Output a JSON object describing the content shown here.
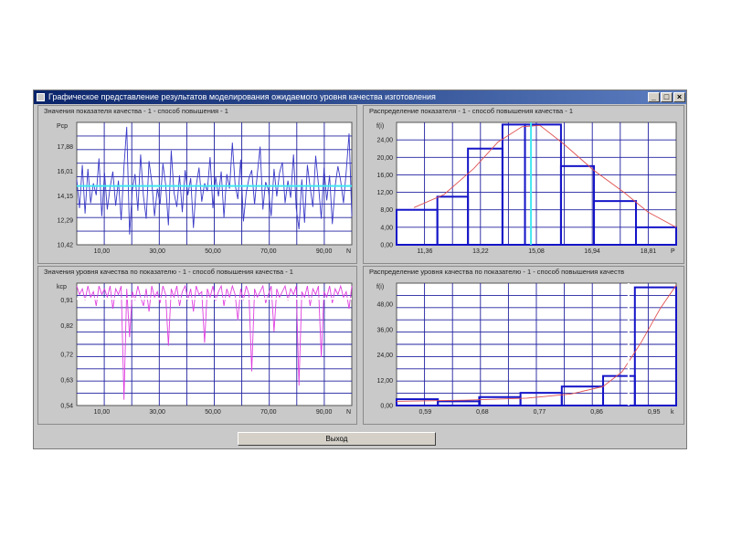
{
  "window": {
    "title": "Графическое представление результатов моделирования ожидаемого уровня качества изготовления",
    "buttons": {
      "minimize": "_",
      "maximize": "□",
      "close": "×"
    }
  },
  "panels": {
    "top_left_title": "Значения показателя качества - 1 - способ повышения - 1",
    "top_right_title": "Распределение  показателя - 1 - способ повышения качества - 1",
    "bottom_left_title": "Значения уровня качества по показателю - 1 - способ повышения качества - 1",
    "bottom_right_title": "Распределение  уровня качества по показателю - 1 - способ повышения качеств"
  },
  "exit_button": "Выход",
  "colors": {
    "series_blue": "#3a3ac8",
    "series_magenta": "#e040e0",
    "mean_cyan": "#40e8f0",
    "grid_blue": "#2020a0",
    "curve_red": "#e05050"
  },
  "chart_data": [
    {
      "type": "line",
      "title": "Значения показателя качества - 1 - способ повышения - 1",
      "ylabel": "Pcp",
      "xlabel": "N",
      "xlim": [
        1,
        100
      ],
      "ylim": [
        10.42,
        19.74
      ],
      "yticks": [
        "10,42",
        "12,29",
        "14,15",
        "16,01",
        "17,88"
      ],
      "yticks_values": [
        10.42,
        12.29,
        14.15,
        16.01,
        17.88
      ],
      "xticks": [
        "10,00",
        "30,00",
        "50,00",
        "70,00",
        "90,00"
      ],
      "xticks_values": [
        10,
        30,
        50,
        70,
        90
      ],
      "mean": 14.9,
      "values": [
        15.4,
        13.2,
        16.5,
        12.8,
        16.2,
        13.6,
        15.1,
        14.2,
        17.0,
        12.6,
        15.9,
        13.1,
        14.8,
        16.0,
        13.4,
        15.3,
        12.3,
        16.4,
        19.4,
        11.2,
        14.6,
        15.8,
        13.0,
        17.3,
        14.1,
        12.4,
        16.8,
        15.2,
        12.6,
        14.7,
        13.5,
        16.6,
        15.0,
        11.9,
        17.6,
        14.4,
        13.3,
        15.7,
        12.9,
        16.1,
        14.2,
        15.5,
        11.7,
        14.9,
        16.3,
        13.7,
        15.1,
        14.5,
        17.1,
        13.2,
        15.6,
        14.1,
        16.0,
        12.5,
        15.8,
        14.7,
        18.2,
        15.0,
        13.9,
        16.9,
        12.2,
        14.4,
        15.5,
        16.1,
        13.5,
        15.8,
        17.9,
        13.1,
        15.2,
        14.6,
        12.6,
        16.2,
        14.1,
        15.9,
        16.7,
        13.6,
        15.3,
        14.0,
        17.3,
        13.2,
        11.6,
        15.4,
        12.1,
        16.5,
        14.8,
        13.3,
        17.2,
        15.0,
        12.4,
        16.3,
        13.8,
        15.7,
        12.0,
        14.9,
        16.4,
        15.3,
        13.6,
        16.0,
        18.9,
        12.6
      ]
    },
    {
      "type": "bar",
      "title": "Распределение  показателя - 1 - способ повышения качества - 1",
      "ylabel": "f(i)",
      "xlabel": "P",
      "xlim": [
        10.42,
        19.74
      ],
      "ylim": [
        0,
        28
      ],
      "yticks": [
        "0,00",
        "4,00",
        "8,00",
        "12,00",
        "16,00",
        "20,00",
        "24,00"
      ],
      "yticks_values": [
        0,
        4,
        8,
        12,
        16,
        20,
        24
      ],
      "xticks": [
        "11,36",
        "13,22",
        "15,08",
        "16,94",
        "18,81"
      ],
      "xticks_values": [
        11.36,
        13.22,
        15.08,
        16.94,
        18.81
      ],
      "bin_edges": [
        10.42,
        12.29,
        14.15,
        16.01,
        17.88,
        19.74
      ],
      "bin_edges_half": [
        10.42,
        11.36,
        12.29,
        13.22,
        14.15,
        15.08,
        16.01,
        16.94,
        17.88,
        18.81,
        19.74
      ],
      "bins_halfwidth": [
        8.0,
        11.0,
        22.0,
        27.5,
        18.0,
        10.0,
        4.0
      ],
      "bins_halfwidth_index": [
        0,
        1,
        2,
        3,
        4,
        5,
        6
      ],
      "bins": [
        {
          "from": 10.42,
          "to": 11.78,
          "value": 8.0
        },
        {
          "from": 11.78,
          "to": 12.8,
          "value": 11.0
        },
        {
          "from": 12.8,
          "to": 13.95,
          "value": 22.0
        },
        {
          "from": 13.95,
          "to": 14.7,
          "value": 27.5
        },
        {
          "from": 14.7,
          "to": 15.9,
          "value": 27.5
        },
        {
          "from": 15.9,
          "to": 17.0,
          "value": 18.0
        },
        {
          "from": 17.0,
          "to": 18.4,
          "value": 10.0
        },
        {
          "from": 18.4,
          "to": 19.74,
          "value": 4.0
        }
      ],
      "mean": 14.9,
      "curve": [
        [
          11.0,
          8.5
        ],
        [
          12.0,
          11.5
        ],
        [
          13.0,
          17.5
        ],
        [
          13.8,
          23.5
        ],
        [
          14.6,
          27.0
        ],
        [
          15.2,
          27.3
        ],
        [
          16.0,
          23.0
        ],
        [
          17.0,
          17.0
        ],
        [
          18.0,
          12.0
        ],
        [
          18.8,
          7.5
        ],
        [
          19.74,
          4.0
        ]
      ]
    },
    {
      "type": "line",
      "title": "Значения уровня качества по показателю - 1 - способ повышения качества - 1",
      "ylabel": "kcp",
      "xlabel": "N",
      "xlim": [
        1,
        100
      ],
      "ylim": [
        0.54,
        0.97
      ],
      "yticks": [
        "0,54",
        "0,63",
        "0,72",
        "0,82",
        "0,91"
      ],
      "yticks_values": [
        0.54,
        0.63,
        0.72,
        0.82,
        0.91
      ],
      "xticks": [
        "10,00",
        "30,00",
        "50,00",
        "70,00",
        "90,00"
      ],
      "xticks_values": [
        10,
        30,
        50,
        70,
        90
      ],
      "mean": 0.915,
      "values": [
        0.96,
        0.93,
        0.95,
        0.91,
        0.96,
        0.92,
        0.94,
        0.89,
        0.96,
        0.93,
        0.95,
        0.92,
        0.96,
        0.88,
        0.95,
        0.93,
        0.96,
        0.56,
        0.95,
        0.78,
        0.94,
        0.91,
        0.96,
        0.92,
        0.89,
        0.95,
        0.87,
        0.96,
        0.92,
        0.94,
        0.9,
        0.96,
        0.93,
        0.75,
        0.95,
        0.92,
        0.96,
        0.89,
        0.94,
        0.96,
        0.91,
        0.95,
        0.87,
        0.96,
        0.93,
        0.94,
        0.76,
        0.95,
        0.92,
        0.96,
        0.91,
        0.94,
        0.96,
        0.89,
        0.95,
        0.92,
        0.96,
        0.93,
        0.84,
        0.95,
        0.91,
        0.96,
        0.93,
        0.66,
        0.95,
        0.92,
        0.94,
        0.96,
        0.9,
        0.93,
        0.96,
        0.8,
        0.95,
        0.92,
        0.94,
        0.96,
        0.91,
        0.95,
        0.93,
        0.96,
        0.61,
        0.94,
        0.92,
        0.96,
        0.89,
        0.95,
        0.93,
        0.96,
        0.71,
        0.94,
        0.92,
        0.96,
        0.9,
        0.95,
        0.93,
        0.96,
        0.92,
        0.94,
        0.88,
        0.96
      ]
    },
    {
      "type": "bar",
      "title": "Распределение  уровня качества по показателю - 1 - способ повышения качеств",
      "ylabel": "f(i)",
      "xlabel": "k",
      "xlim": [
        0.545,
        0.985
      ],
      "ylim": [
        0,
        58
      ],
      "yticks": [
        "0,00",
        "12,00",
        "24,00",
        "36,00",
        "48,00"
      ],
      "yticks_values": [
        0,
        12,
        24,
        36,
        48
      ],
      "xticks": [
        "0,59",
        "0,68",
        "0,77",
        "0,86",
        "0,95"
      ],
      "xticks_values": [
        0.59,
        0.68,
        0.77,
        0.86,
        0.95
      ],
      "bins": [
        {
          "from": 0.545,
          "to": 0.61,
          "value": 3.0
        },
        {
          "from": 0.61,
          "to": 0.675,
          "value": 2.0
        },
        {
          "from": 0.675,
          "to": 0.74,
          "value": 4.0
        },
        {
          "from": 0.74,
          "to": 0.805,
          "value": 6.0
        },
        {
          "from": 0.805,
          "to": 0.87,
          "value": 9.0
        },
        {
          "from": 0.87,
          "to": 0.92,
          "value": 14.0
        },
        {
          "from": 0.92,
          "to": 0.985,
          "value": 56.0
        }
      ],
      "mean": 0.91,
      "curve": [
        [
          0.545,
          2.0
        ],
        [
          0.65,
          2.5
        ],
        [
          0.75,
          3.5
        ],
        [
          0.82,
          5.5
        ],
        [
          0.87,
          9.0
        ],
        [
          0.9,
          16.0
        ],
        [
          0.93,
          30.0
        ],
        [
          0.96,
          46.0
        ],
        [
          0.985,
          57.0
        ]
      ]
    }
  ]
}
